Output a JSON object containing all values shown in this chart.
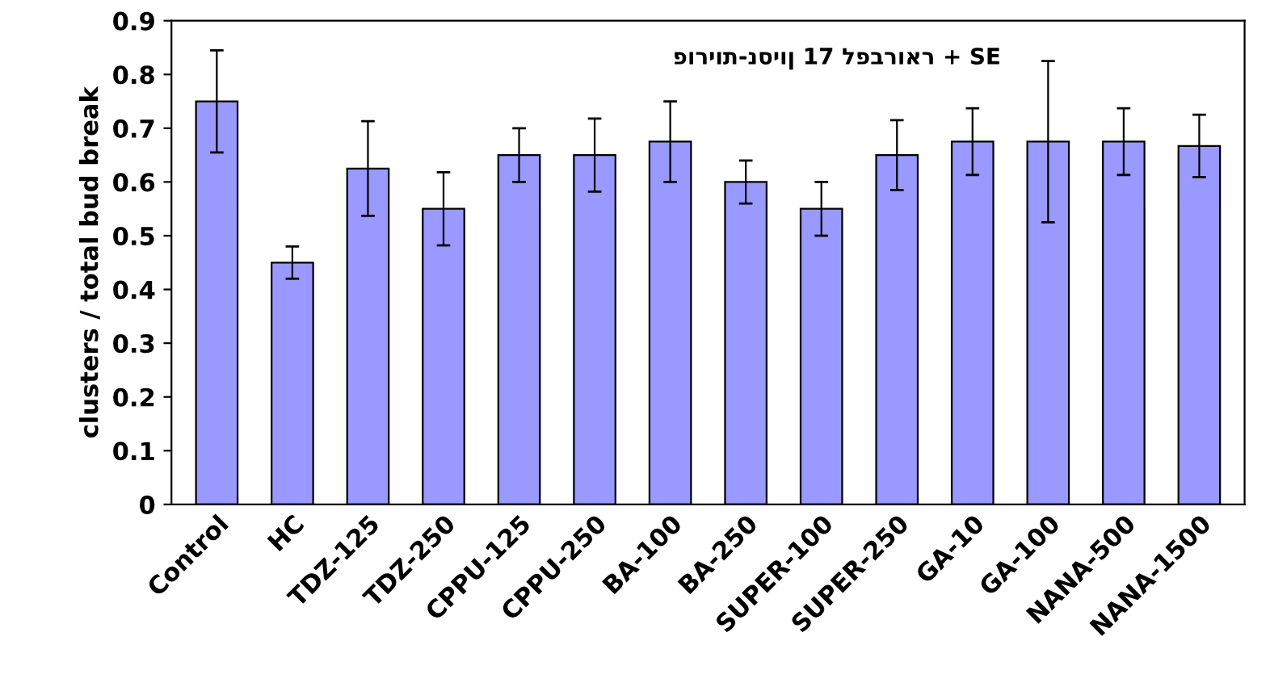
{
  "chart_data": {
    "type": "bar",
    "title": "פוריות-נסיון 17 לפברואר + SE",
    "ylabel": "clusters / total bud break",
    "categories": [
      "Control",
      "HC",
      "TDZ-125",
      "TDZ-250",
      "CPPU-125",
      "CPPU-250",
      "BA-100",
      "BA-250",
      "SUPER-100",
      "SUPER-250",
      "GA-10",
      "GA-100",
      "NANA-500",
      "NANA-1500"
    ],
    "values": [
      0.75,
      0.45,
      0.625,
      0.55,
      0.65,
      0.65,
      0.675,
      0.6,
      0.55,
      0.65,
      0.675,
      0.675,
      0.675,
      0.667
    ],
    "errors": [
      0.095,
      0.03,
      0.088,
      0.068,
      0.05,
      0.068,
      0.075,
      0.04,
      0.05,
      0.065,
      0.062,
      0.15,
      0.062,
      0.058
    ],
    "color": "#9999ff",
    "ylim": [
      0,
      0.9
    ],
    "yticks": [
      0,
      0.1,
      0.2,
      0.3,
      0.4,
      0.5,
      0.6,
      0.7,
      0.8,
      0.9
    ],
    "grid": false,
    "legend": false
  }
}
